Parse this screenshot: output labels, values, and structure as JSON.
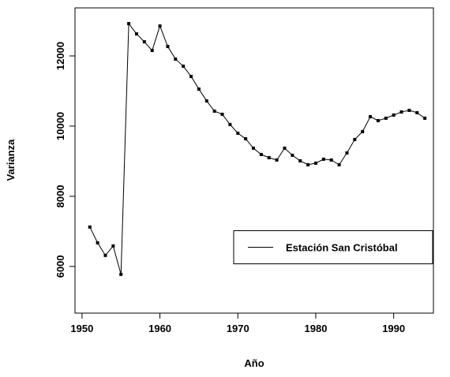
{
  "chart_data": {
    "type": "line",
    "x_label": "Año",
    "y_label": "Varianza",
    "x": [
      1951,
      1952,
      1953,
      1954,
      1955,
      1956,
      1957,
      1958,
      1959,
      1960,
      1961,
      1962,
      1963,
      1964,
      1965,
      1966,
      1967,
      1968,
      1969,
      1970,
      1971,
      1972,
      1973,
      1974,
      1975,
      1976,
      1977,
      1978,
      1979,
      1980,
      1981,
      1982,
      1983,
      1984,
      1985,
      1986,
      1987,
      1988,
      1989,
      1990,
      1991,
      1992,
      1993,
      1994
    ],
    "series": [
      {
        "name": "Estación San Cristóbal",
        "color": "#000000",
        "values": [
          7124,
          6674,
          6315,
          6584,
          5775,
          12921,
          12629,
          12404,
          12157,
          12854,
          12270,
          11910,
          11708,
          11416,
          11056,
          10719,
          10427,
          10337,
          10045,
          9798,
          9640,
          9371,
          9191,
          9101,
          9034,
          9371,
          9169,
          9011,
          8899,
          8944,
          9056,
          9034,
          8899,
          9236,
          9618,
          9843,
          10270,
          10157,
          10225,
          10315,
          10404,
          10449,
          10382,
          10225
        ]
      }
    ],
    "xlim": [
      1949.1,
      1995.1
    ],
    "xticks": [
      1950,
      1960,
      1970,
      1980,
      1990
    ],
    "ylim": [
      4670,
      13370
    ],
    "yticks": [
      6000,
      8000,
      10000,
      12000
    ],
    "legend": "center-right"
  }
}
